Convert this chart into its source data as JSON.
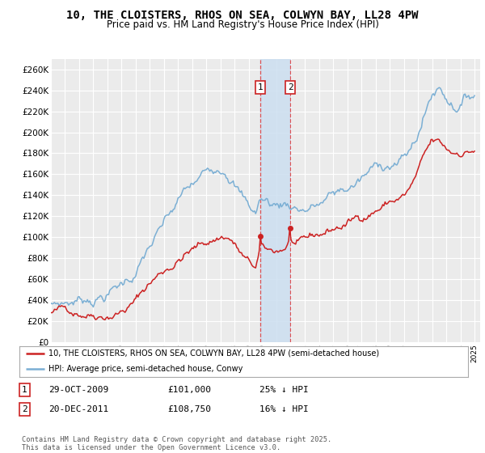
{
  "title": "10, THE CLOISTERS, RHOS ON SEA, COLWYN BAY, LL28 4PW",
  "subtitle": "Price paid vs. HM Land Registry's House Price Index (HPI)",
  "ylim": [
    0,
    270000
  ],
  "yticks": [
    0,
    20000,
    40000,
    60000,
    80000,
    100000,
    120000,
    140000,
    160000,
    180000,
    200000,
    220000,
    240000,
    260000
  ],
  "ytick_labels": [
    "£0",
    "£20K",
    "£40K",
    "£60K",
    "£80K",
    "£100K",
    "£120K",
    "£140K",
    "£160K",
    "£180K",
    "£200K",
    "£220K",
    "£240K",
    "£260K"
  ],
  "background_color": "#ffffff",
  "plot_bg_color": "#ebebeb",
  "grid_color": "#ffffff",
  "hpi_color": "#7bafd4",
  "price_color": "#cc2222",
  "t1_year": 2009.833,
  "t1_price": 101000,
  "t2_year": 2011.958,
  "t2_price": 108750,
  "legend_line1": "10, THE CLOISTERS, RHOS ON SEA, COLWYN BAY, LL28 4PW (semi-detached house)",
  "legend_line2": "HPI: Average price, semi-detached house, Conwy",
  "row1_num": "1",
  "row1_date": "29-OCT-2009",
  "row1_price": "£101,000",
  "row1_pct": "25% ↓ HPI",
  "row2_num": "2",
  "row2_date": "20-DEC-2011",
  "row2_price": "£108,750",
  "row2_pct": "16% ↓ HPI",
  "footer": "Contains HM Land Registry data © Crown copyright and database right 2025.\nThis data is licensed under the Open Government Licence v3.0.",
  "red_box_color": "#cc2222",
  "shade_color": "#ccdff0"
}
